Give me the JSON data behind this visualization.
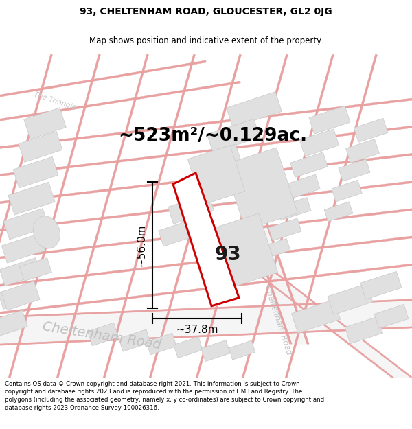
{
  "title_line1": "93, CHELTENHAM ROAD, GLOUCESTER, GL2 0JG",
  "title_line2": "Map shows position and indicative extent of the property.",
  "area_text": "~523m²/~0.129ac.",
  "label_56": "~56.0m",
  "label_378": "~37.8m",
  "property_number": "93",
  "footer_text": "Contains OS data © Crown copyright and database right 2021. This information is subject to Crown copyright and database rights 2023 and is reproduced with the permission of HM Land Registry. The polygons (including the associated geometry, namely x, y co-ordinates) are subject to Crown copyright and database rights 2023 Ordnance Survey 100026316.",
  "bg_color": "#ffffff",
  "map_bg": "#ffffff",
  "road_color": "#e8a0a0",
  "building_color": "#e0e0e0",
  "building_edge": "#c8c8c8",
  "property_fill": "#ffffff",
  "property_edge": "#cc0000",
  "title_color": "#000000",
  "footer_color": "#000000",
  "dim_color": "#000000",
  "area_color": "#000000"
}
